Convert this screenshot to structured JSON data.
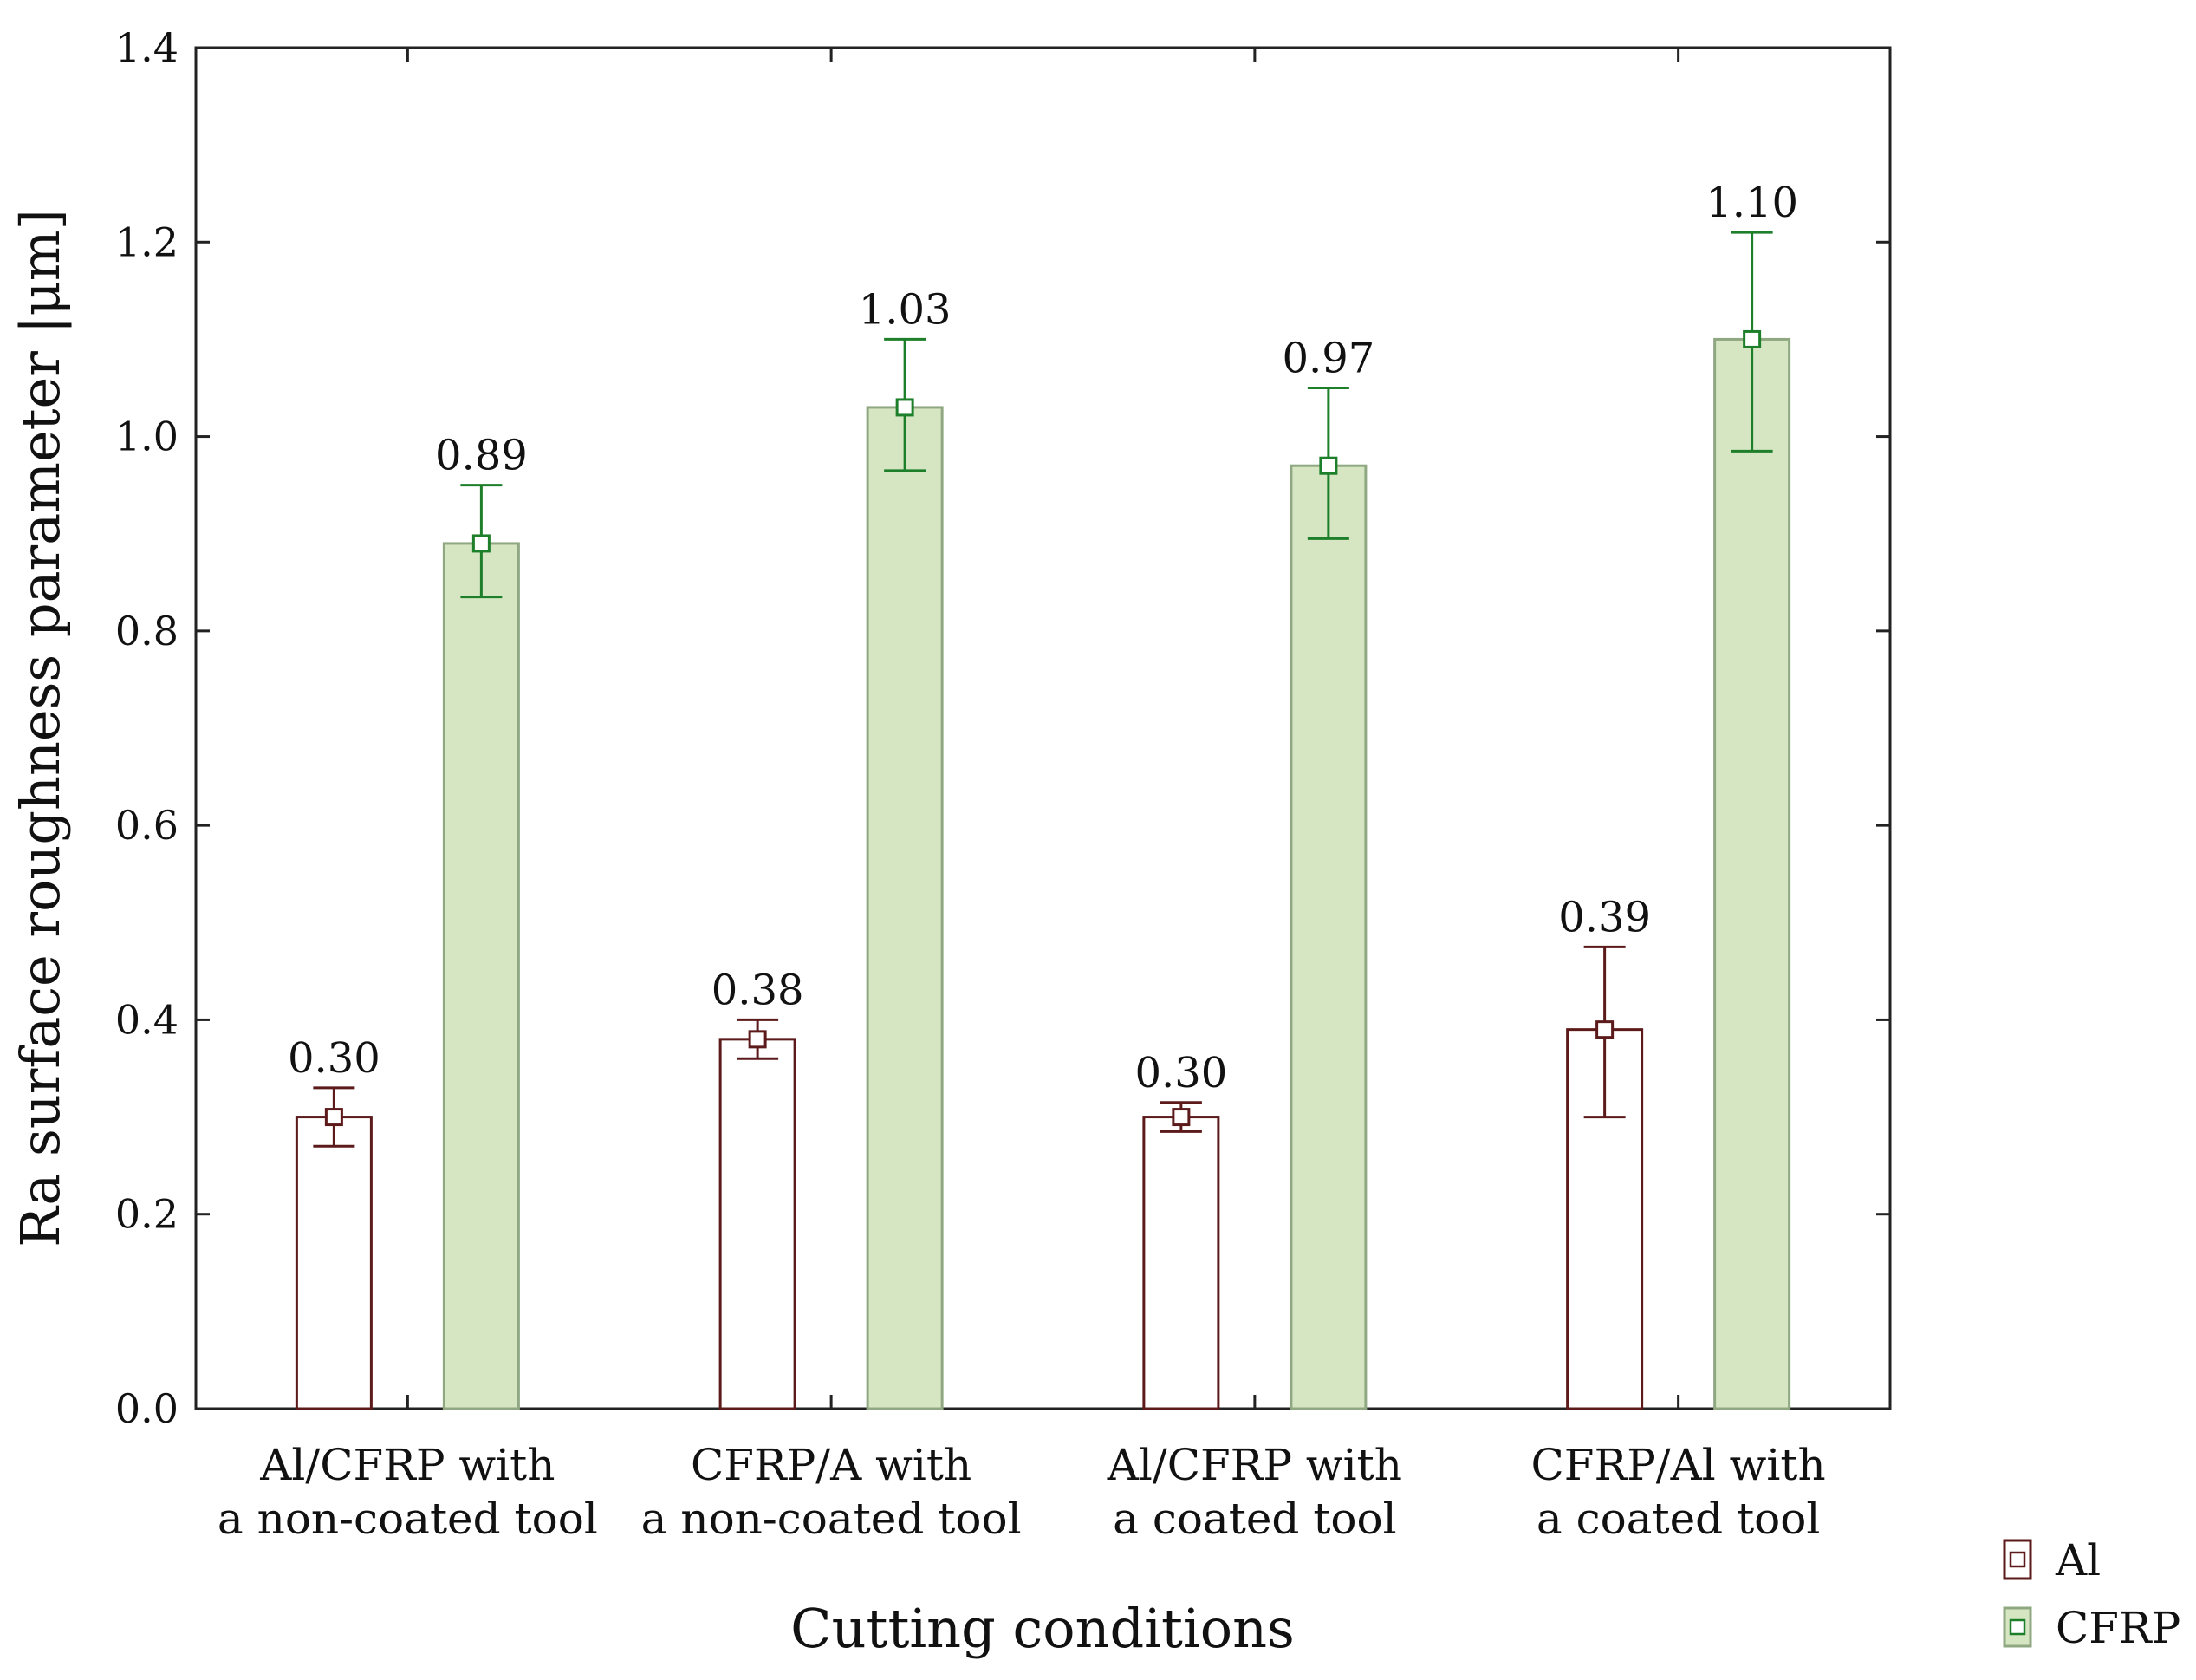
{
  "chart_data": {
    "type": "bar",
    "xlabel": "Cutting conditions",
    "ylabel": "Ra surface roughness parameter |μm]",
    "ylim": [
      0,
      1.4
    ],
    "yticks": [
      "0.0",
      "0.2",
      "0.4",
      "0.6",
      "0.8",
      "1.0",
      "1.2",
      "1.4"
    ],
    "categories": [
      [
        "Al/CFRP with",
        "a non-coated tool"
      ],
      [
        "CFRP/A with",
        "a non-coated tool"
      ],
      [
        "Al/CFRP with",
        "a coated tool"
      ],
      [
        "CFRP/Al with",
        "a coated tool"
      ]
    ],
    "series": [
      {
        "name": "Al",
        "values": [
          0.3,
          0.38,
          0.3,
          0.39
        ],
        "labels": [
          "0.30",
          "0.38",
          "0.30",
          "0.39"
        ],
        "err_low": [
          0.27,
          0.36,
          0.285,
          0.3
        ],
        "err_high": [
          0.33,
          0.4,
          0.315,
          0.475
        ],
        "fill": "#ffffff",
        "stroke": "#5c1a1a"
      },
      {
        "name": "CFRP",
        "values": [
          0.89,
          1.03,
          0.97,
          1.1
        ],
        "labels": [
          "0.89",
          "1.03",
          "0.97",
          "1.10"
        ],
        "err_low": [
          0.835,
          0.965,
          0.895,
          0.985
        ],
        "err_high": [
          0.95,
          1.1,
          1.05,
          1.21
        ],
        "fill": "#d6e6c3",
        "stroke": "#8fa882",
        "err_color": "#1e7f2a"
      }
    ],
    "grid": false,
    "legend_position": "bottom-right"
  }
}
